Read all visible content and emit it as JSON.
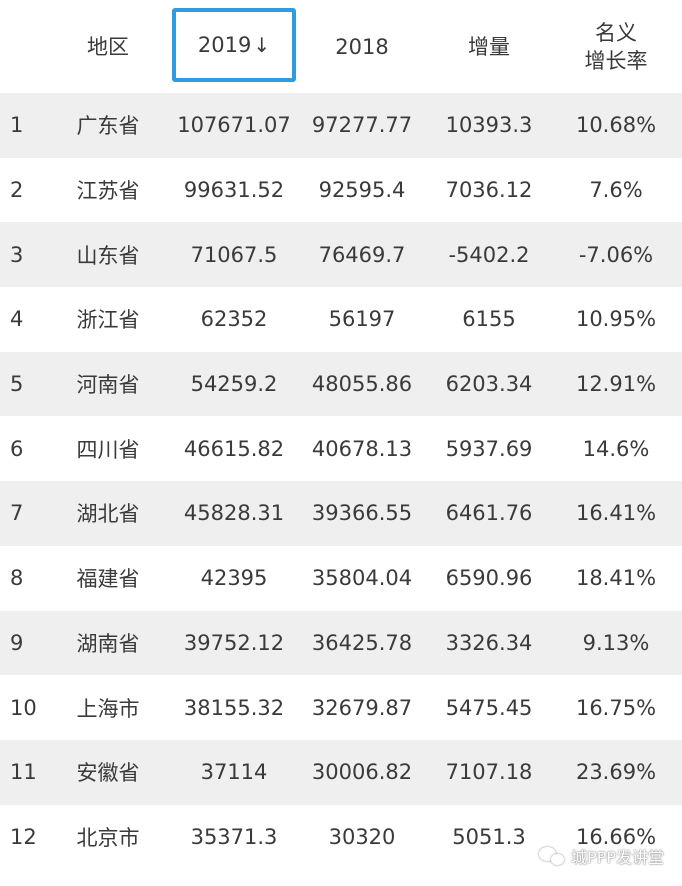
{
  "header": {
    "region": "地区",
    "y2019": "2019",
    "sort_arrow": "↓",
    "y2018": "2018",
    "increase": "增量",
    "rate_line1": "名义",
    "rate_line2": "增长率"
  },
  "rows": [
    {
      "rank": "1",
      "region": "广东省",
      "y2019": "107671.07",
      "y2018": "97277.77",
      "increase": "10393.3",
      "rate": "10.68%"
    },
    {
      "rank": "2",
      "region": "江苏省",
      "y2019": "99631.52",
      "y2018": "92595.4",
      "increase": "7036.12",
      "rate": "7.6%"
    },
    {
      "rank": "3",
      "region": "山东省",
      "y2019": "71067.5",
      "y2018": "76469.7",
      "increase": "-5402.2",
      "rate": "-7.06%"
    },
    {
      "rank": "4",
      "region": "浙江省",
      "y2019": "62352",
      "y2018": "56197",
      "increase": "6155",
      "rate": "10.95%"
    },
    {
      "rank": "5",
      "region": "河南省",
      "y2019": "54259.2",
      "y2018": "48055.86",
      "increase": "6203.34",
      "rate": "12.91%"
    },
    {
      "rank": "6",
      "region": "四川省",
      "y2019": "46615.82",
      "y2018": "40678.13",
      "increase": "5937.69",
      "rate": "14.6%"
    },
    {
      "rank": "7",
      "region": "湖北省",
      "y2019": "45828.31",
      "y2018": "39366.55",
      "increase": "6461.76",
      "rate": "16.41%"
    },
    {
      "rank": "8",
      "region": "福建省",
      "y2019": "42395",
      "y2018": "35804.04",
      "increase": "6590.96",
      "rate": "18.41%"
    },
    {
      "rank": "9",
      "region": "湖南省",
      "y2019": "39752.12",
      "y2018": "36425.78",
      "increase": "3326.34",
      "rate": "9.13%"
    },
    {
      "rank": "10",
      "region": "上海市",
      "y2019": "38155.32",
      "y2018": "32679.87",
      "increase": "5475.45",
      "rate": "16.75%"
    },
    {
      "rank": "11",
      "region": "安徽省",
      "y2019": "37114",
      "y2018": "30006.82",
      "increase": "7107.18",
      "rate": "23.69%"
    },
    {
      "rank": "12",
      "region": "北京市",
      "y2019": "35371.3",
      "y2018": "30320",
      "increase": "5051.3",
      "rate": "16.66%"
    }
  ],
  "watermark": {
    "text": "城PPP发讲堂",
    "icon": "wechat-icon"
  },
  "colors": {
    "sort_highlight": "#2f9be0",
    "stripe": "#efefef",
    "text": "#3a3a3a"
  }
}
